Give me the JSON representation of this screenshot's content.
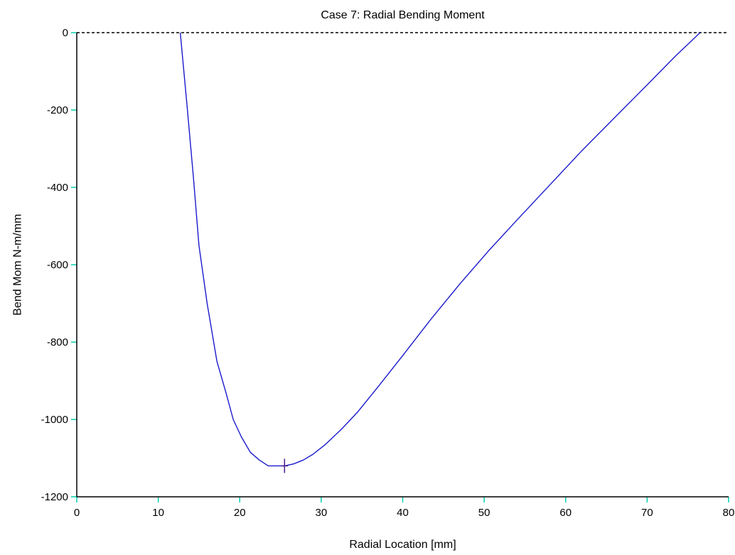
{
  "chart_data": {
    "type": "line",
    "title": "Case 7: Radial Bending Moment",
    "xlabel": "Radial Location [mm]",
    "ylabel": "Bend Mom N-m/mm",
    "xlim": [
      0,
      80
    ],
    "ylim": [
      -1200,
      0
    ],
    "x_ticks": [
      0,
      10,
      20,
      30,
      40,
      50,
      60,
      70,
      80
    ],
    "y_ticks": [
      0,
      -200,
      -400,
      -600,
      -800,
      -1000,
      -1200
    ],
    "grid": false,
    "zero_line": {
      "y": 0,
      "style": "dashed"
    },
    "series": [
      {
        "color": "#1a1acc",
        "x": [
          12.7,
          13.5,
          14.3,
          15.0,
          16.0,
          17.2,
          18.3,
          19.2,
          20.2,
          21.3,
          22.4,
          23.5,
          24.5,
          25.5,
          26.6,
          27.8,
          29.0,
          30.5,
          32.5,
          34.5,
          37.0,
          40.0,
          43.5,
          47.0,
          50.5,
          54.0,
          58.0,
          62.0,
          66.0,
          70.0,
          73.5,
          76.5
        ],
        "values": [
          0,
          -180,
          -370,
          -550,
          -700,
          -850,
          -930,
          -1000,
          -1045,
          -1085,
          -1105,
          -1120,
          -1120,
          -1120,
          -1115,
          -1105,
          -1090,
          -1065,
          -1025,
          -980,
          -915,
          -835,
          -740,
          -650,
          -565,
          -485,
          -395,
          -305,
          -220,
          -135,
          -60,
          0
        ]
      }
    ],
    "marker": {
      "x": 25.5,
      "y": -1120,
      "color": "#4a1a8c"
    },
    "colors": {
      "line": "#1a1acc",
      "tick": "#00d0b0",
      "axis": "#000000"
    }
  }
}
